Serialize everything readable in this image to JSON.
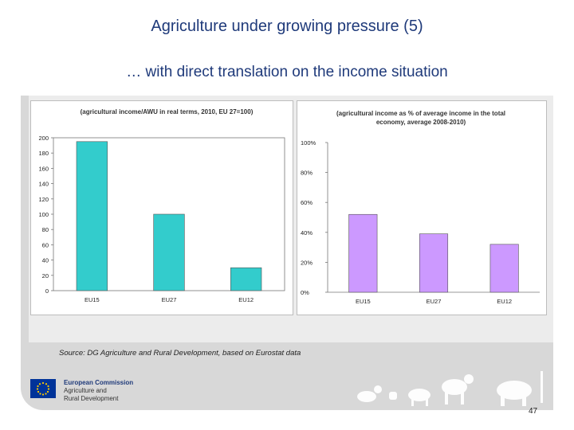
{
  "slide": {
    "title": "Agriculture under growing pressure (5)",
    "subtitle": "… with direct translation on the income situation",
    "source": "Source: DG Agriculture and Rural Development, based on Eurostat data",
    "page_number": "47",
    "logo": {
      "line1": "European Commission",
      "line2": "Agriculture and",
      "line3": "Rural Development"
    }
  },
  "colors": {
    "bar1": "#33cccc",
    "bar2": "#cc99ff",
    "panel": "#d8d8d8",
    "title": "#1f3a7a"
  },
  "chart_data": [
    {
      "type": "bar",
      "title": "(agricultural income/AWU in real terms, 2010, EU 27=100)",
      "categories": [
        "EU15",
        "EU27",
        "EU12"
      ],
      "values": [
        195,
        100,
        30
      ],
      "ylim": [
        0,
        200
      ],
      "yticks": [
        "0",
        "20",
        "40",
        "60",
        "80",
        "100",
        "120",
        "140",
        "160",
        "180",
        "200"
      ],
      "grid": false
    },
    {
      "type": "bar",
      "title_lines": [
        "(agricultural income as % of average income in the total",
        "economy, average 2008-2010)"
      ],
      "categories": [
        "EU15",
        "EU27",
        "EU12"
      ],
      "values": [
        52,
        39,
        32
      ],
      "ylim": [
        0,
        100
      ],
      "yticks": [
        "0%",
        "20%",
        "40%",
        "60%",
        "80%",
        "100%"
      ],
      "grid": false
    }
  ]
}
